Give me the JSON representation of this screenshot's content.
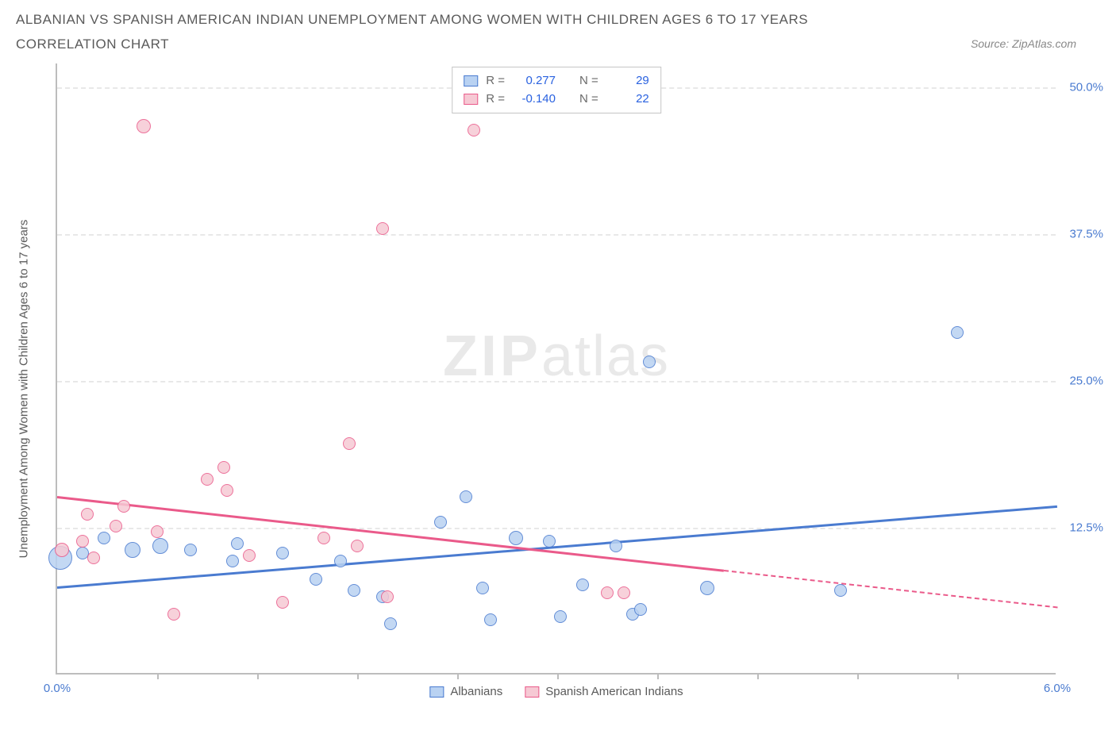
{
  "title": "ALBANIAN VS SPANISH AMERICAN INDIAN UNEMPLOYMENT AMONG WOMEN WITH CHILDREN AGES 6 TO 17 YEARS CORRELATION CHART",
  "source": "Source: ZipAtlas.com",
  "ylabel": "Unemployment Among Women with Children Ages 6 to 17 years",
  "watermark_zip": "ZIP",
  "watermark_atlas": "atlas",
  "chart": {
    "type": "scatter",
    "xlim": [
      0.0,
      6.0
    ],
    "ylim": [
      0.0,
      52.0
    ],
    "x_tick_labels": {
      "min": "0.0%",
      "max": "6.0%"
    },
    "x_minor_ticks": [
      0.6,
      1.2,
      1.8,
      2.4,
      3.0,
      3.6,
      4.2,
      4.8,
      5.4
    ],
    "y_gridlines": [
      {
        "v": 12.5,
        "label": "12.5%"
      },
      {
        "v": 25.0,
        "label": "25.0%"
      },
      {
        "v": 37.5,
        "label": "37.5%"
      },
      {
        "v": 50.0,
        "label": "50.0%"
      }
    ],
    "background_color": "#ffffff",
    "grid_color": "#e8e8e8",
    "axis_color": "#bdbdbd",
    "series": [
      {
        "name": "Albanians",
        "label": "Albanians",
        "fill": "#b9d2f2",
        "stroke": "#4a7bd0",
        "r_label": "R =",
        "r_value": "0.277",
        "n_label": "N =",
        "n_value": "29",
        "trend": {
          "x1": 0.0,
          "y1": 7.5,
          "x2": 6.0,
          "y2": 14.4,
          "solid_end_x": 6.0
        },
        "points": [
          {
            "x": 0.02,
            "y": 9.8,
            "r": 15
          },
          {
            "x": 0.15,
            "y": 10.2,
            "r": 8
          },
          {
            "x": 0.28,
            "y": 11.5,
            "r": 8
          },
          {
            "x": 0.45,
            "y": 10.5,
            "r": 10
          },
          {
            "x": 0.62,
            "y": 10.8,
            "r": 10
          },
          {
            "x": 0.8,
            "y": 10.5,
            "r": 8
          },
          {
            "x": 1.05,
            "y": 9.5,
            "r": 8
          },
          {
            "x": 1.08,
            "y": 11.0,
            "r": 8
          },
          {
            "x": 1.35,
            "y": 10.2,
            "r": 8
          },
          {
            "x": 1.55,
            "y": 8.0,
            "r": 8
          },
          {
            "x": 1.7,
            "y": 9.5,
            "r": 8
          },
          {
            "x": 1.78,
            "y": 7.0,
            "r": 8
          },
          {
            "x": 1.95,
            "y": 6.5,
            "r": 8
          },
          {
            "x": 2.0,
            "y": 4.2,
            "r": 8
          },
          {
            "x": 2.3,
            "y": 12.8,
            "r": 8
          },
          {
            "x": 2.45,
            "y": 15.0,
            "r": 8
          },
          {
            "x": 2.55,
            "y": 7.2,
            "r": 8
          },
          {
            "x": 2.6,
            "y": 4.5,
            "r": 8
          },
          {
            "x": 2.75,
            "y": 11.5,
            "r": 9
          },
          {
            "x": 2.95,
            "y": 11.2,
            "r": 8
          },
          {
            "x": 3.02,
            "y": 4.8,
            "r": 8
          },
          {
            "x": 3.15,
            "y": 7.5,
            "r": 8
          },
          {
            "x": 3.35,
            "y": 10.8,
            "r": 8
          },
          {
            "x": 3.45,
            "y": 5.0,
            "r": 8
          },
          {
            "x": 3.5,
            "y": 5.4,
            "r": 8
          },
          {
            "x": 3.55,
            "y": 26.5,
            "r": 8
          },
          {
            "x": 3.9,
            "y": 7.2,
            "r": 9
          },
          {
            "x": 4.7,
            "y": 7.0,
            "r": 8
          },
          {
            "x": 5.4,
            "y": 29.0,
            "r": 8
          }
        ]
      },
      {
        "name": "Spanish American Indians",
        "label": "Spanish American Indians",
        "fill": "#f6c9d4",
        "stroke": "#ea5a8a",
        "r_label": "R =",
        "r_value": "-0.140",
        "n_label": "N =",
        "n_value": "22",
        "trend": {
          "x1": 0.0,
          "y1": 15.2,
          "x2": 6.0,
          "y2": 5.8,
          "solid_end_x": 4.0
        },
        "points": [
          {
            "x": 0.03,
            "y": 10.5,
            "r": 9
          },
          {
            "x": 0.15,
            "y": 11.2,
            "r": 8
          },
          {
            "x": 0.18,
            "y": 13.5,
            "r": 8
          },
          {
            "x": 0.22,
            "y": 9.8,
            "r": 8
          },
          {
            "x": 0.35,
            "y": 12.5,
            "r": 8
          },
          {
            "x": 0.4,
            "y": 14.2,
            "r": 8
          },
          {
            "x": 0.52,
            "y": 46.5,
            "r": 9
          },
          {
            "x": 0.6,
            "y": 12.0,
            "r": 8
          },
          {
            "x": 0.7,
            "y": 5.0,
            "r": 8
          },
          {
            "x": 0.9,
            "y": 16.5,
            "r": 8
          },
          {
            "x": 1.0,
            "y": 17.5,
            "r": 8
          },
          {
            "x": 1.02,
            "y": 15.5,
            "r": 8
          },
          {
            "x": 1.15,
            "y": 10.0,
            "r": 8
          },
          {
            "x": 1.35,
            "y": 6.0,
            "r": 8
          },
          {
            "x": 1.6,
            "y": 11.5,
            "r": 8
          },
          {
            "x": 1.75,
            "y": 19.5,
            "r": 8
          },
          {
            "x": 1.8,
            "y": 10.8,
            "r": 8
          },
          {
            "x": 1.95,
            "y": 37.8,
            "r": 8
          },
          {
            "x": 1.98,
            "y": 6.5,
            "r": 8
          },
          {
            "x": 2.5,
            "y": 46.2,
            "r": 8
          },
          {
            "x": 3.3,
            "y": 6.8,
            "r": 8
          },
          {
            "x": 3.4,
            "y": 6.8,
            "r": 8
          }
        ]
      }
    ]
  }
}
